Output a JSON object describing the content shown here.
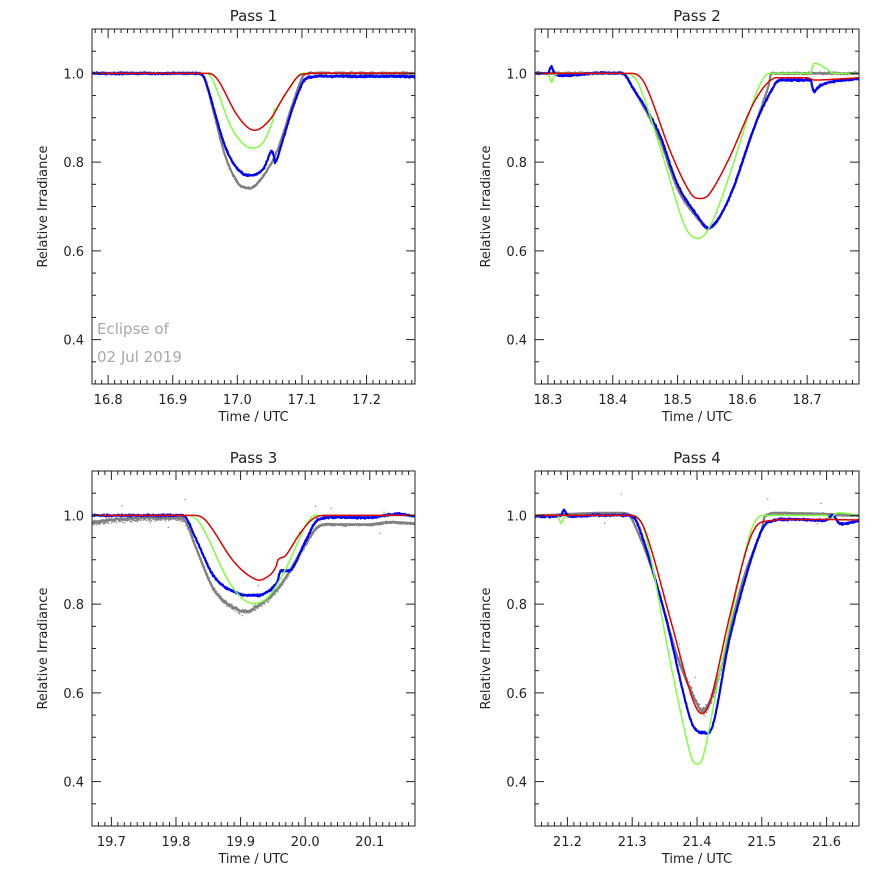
{
  "chart_data": [
    {
      "type": "line",
      "title": "Pass 1",
      "xlabel": "Time / UTC",
      "ylabel": "Relative Irradiance",
      "xlim": [
        16.775,
        17.275
      ],
      "ylim": [
        0.3,
        1.1
      ],
      "xticks": [
        16.8,
        16.9,
        17.0,
        17.1,
        17.2
      ],
      "xtick_labels": [
        "16.8",
        "16.9",
        "17.0",
        "17.1",
        "17.2"
      ],
      "yticks": [
        0.4,
        0.6,
        0.8,
        1.0
      ],
      "ytick_labels": [
        "0.4",
        "0.6",
        "0.8",
        "1.0"
      ],
      "grid": false,
      "annotation": [
        "Eclipse of",
        "02 Jul 2019"
      ],
      "series": [
        {
          "name": "gray",
          "color": "#808080",
          "style": "noisy",
          "x": [
            16.775,
            16.94,
            16.95,
            16.98,
            17.0,
            17.015,
            17.03,
            17.06,
            17.09,
            17.105,
            17.275
          ],
          "y": [
            1.0,
            1.0,
            0.985,
            0.82,
            0.755,
            0.742,
            0.75,
            0.82,
            0.95,
            0.998,
            1.0
          ]
        },
        {
          "name": "blue",
          "color": "#0000ff",
          "style": "noisy",
          "x": [
            16.775,
            16.94,
            16.95,
            16.98,
            17.0,
            17.02,
            17.04,
            17.053,
            17.057,
            17.058,
            17.062,
            17.09,
            17.108,
            17.275
          ],
          "y": [
            1.0,
            1.0,
            0.985,
            0.84,
            0.785,
            0.77,
            0.785,
            0.825,
            0.81,
            0.8,
            0.81,
            0.94,
            0.99,
            0.993
          ]
        },
        {
          "name": "green",
          "color": "#80ff40",
          "style": "smooth",
          "x": [
            16.775,
            16.945,
            16.96,
            16.99,
            17.01,
            17.025,
            17.04,
            17.055,
            17.057,
            17.06,
            17.08,
            17.1,
            17.275
          ],
          "y": [
            1.0,
            1.0,
            0.99,
            0.88,
            0.84,
            0.832,
            0.845,
            0.895,
            0.92,
            0.92,
            0.965,
            1.0,
            1.0
          ]
        },
        {
          "name": "red",
          "color": "#e00000",
          "style": "smooth",
          "x": [
            16.775,
            16.955,
            16.97,
            17.0,
            17.025,
            17.05,
            17.075,
            17.1,
            17.275
          ],
          "y": [
            1.0,
            1.0,
            0.985,
            0.905,
            0.872,
            0.895,
            0.955,
            0.998,
            1.0
          ]
        }
      ]
    },
    {
      "type": "line",
      "title": "Pass 2",
      "xlabel": "Time / UTC",
      "ylabel": "Relative Irradiance",
      "xlim": [
        18.28,
        18.78
      ],
      "ylim": [
        0.3,
        1.1
      ],
      "xticks": [
        18.3,
        18.4,
        18.5,
        18.6,
        18.7
      ],
      "xtick_labels": [
        "18.3",
        "18.4",
        "18.5",
        "18.6",
        "18.7"
      ],
      "yticks": [
        0.4,
        0.6,
        0.8,
        1.0
      ],
      "ytick_labels": [
        "0.4",
        "0.6",
        "0.8",
        "1.0"
      ],
      "grid": false,
      "series": [
        {
          "name": "gray",
          "color": "#808080",
          "style": "noisy",
          "x": [
            18.28,
            18.415,
            18.43,
            18.47,
            18.5,
            18.53,
            18.55,
            18.58,
            18.62,
            18.64,
            18.645,
            18.78
          ],
          "y": [
            1.0,
            1.0,
            0.97,
            0.86,
            0.74,
            0.675,
            0.652,
            0.72,
            0.885,
            0.97,
            1.0,
            1.0
          ]
        },
        {
          "name": "blue",
          "color": "#0000ff",
          "style": "noisy",
          "x": [
            18.28,
            18.3,
            18.305,
            18.31,
            18.32,
            18.415,
            18.43,
            18.47,
            18.5,
            18.53,
            18.55,
            18.58,
            18.62,
            18.65,
            18.66,
            18.705,
            18.71,
            18.72,
            18.74,
            18.78
          ],
          "y": [
            1.0,
            1.0,
            1.015,
            1.0,
            0.995,
            1.0,
            0.97,
            0.87,
            0.75,
            0.68,
            0.652,
            0.72,
            0.885,
            0.975,
            0.985,
            0.985,
            0.96,
            0.972,
            0.982,
            0.988
          ]
        },
        {
          "name": "green",
          "color": "#80ff40",
          "style": "smooth",
          "x": [
            18.28,
            18.3,
            18.305,
            18.31,
            18.32,
            18.42,
            18.44,
            18.48,
            18.51,
            18.53,
            18.55,
            18.58,
            18.62,
            18.64,
            18.705,
            18.71,
            18.73,
            18.74,
            18.78
          ],
          "y": [
            1.0,
            1.0,
            0.98,
            0.995,
            1.0,
            1.0,
            0.975,
            0.8,
            0.66,
            0.628,
            0.655,
            0.77,
            0.95,
            1.0,
            1.0,
            1.022,
            1.01,
            1.0,
            1.0
          ]
        },
        {
          "name": "red",
          "color": "#e00000",
          "style": "smooth",
          "x": [
            18.28,
            18.43,
            18.45,
            18.49,
            18.52,
            18.535,
            18.55,
            18.58,
            18.62,
            18.65,
            18.7,
            18.71,
            18.72,
            18.78
          ],
          "y": [
            1.0,
            1.0,
            0.975,
            0.82,
            0.73,
            0.718,
            0.73,
            0.81,
            0.94,
            0.99,
            0.99,
            0.985,
            0.985,
            0.99
          ]
        }
      ]
    },
    {
      "type": "line",
      "title": "Pass 3",
      "xlabel": "Time / UTC",
      "ylabel": "Relative Irradiance",
      "xlim": [
        19.67,
        20.17
      ],
      "ylim": [
        0.3,
        1.1
      ],
      "xticks": [
        19.7,
        19.8,
        19.9,
        20.0,
        20.1
      ],
      "xtick_labels": [
        "19.7",
        "19.8",
        "19.9",
        "20.0",
        "20.1"
      ],
      "yticks": [
        0.4,
        0.6,
        0.8,
        1.0
      ],
      "ytick_labels": [
        "0.4",
        "0.6",
        "0.8",
        "1.0"
      ],
      "grid": false,
      "series": [
        {
          "name": "gray",
          "color": "#808080",
          "style": "scatter",
          "x": [
            19.67,
            19.7,
            19.75,
            19.8,
            19.815,
            19.83,
            19.86,
            19.9,
            19.92,
            19.96,
            20.0,
            20.02,
            20.05,
            20.1,
            20.13,
            20.17
          ],
          "y": [
            0.985,
            0.99,
            0.995,
            0.995,
            0.985,
            0.93,
            0.83,
            0.785,
            0.79,
            0.84,
            0.935,
            0.975,
            0.98,
            0.98,
            0.985,
            0.982
          ]
        },
        {
          "name": "blue",
          "color": "#0000ff",
          "style": "noisy",
          "x": [
            19.67,
            19.8,
            19.815,
            19.83,
            19.86,
            19.9,
            19.93,
            19.955,
            19.962,
            19.97,
            19.98,
            20.0,
            20.02,
            20.1,
            20.14,
            20.17
          ],
          "y": [
            1.0,
            1.0,
            0.995,
            0.95,
            0.86,
            0.822,
            0.82,
            0.845,
            0.875,
            0.875,
            0.88,
            0.94,
            0.99,
            0.995,
            1.003,
            0.998
          ]
        },
        {
          "name": "green",
          "color": "#80ff40",
          "style": "smooth",
          "x": [
            19.67,
            19.82,
            19.84,
            19.88,
            19.905,
            19.925,
            19.945,
            19.97,
            20.0,
            20.015,
            20.17
          ],
          "y": [
            1.0,
            1.0,
            0.975,
            0.855,
            0.81,
            0.802,
            0.82,
            0.88,
            0.975,
            1.0,
            1.0
          ]
        },
        {
          "name": "red",
          "color": "#e00000",
          "style": "smooth",
          "x": [
            19.67,
            19.82,
            19.845,
            19.89,
            19.925,
            19.945,
            19.955,
            19.958,
            19.97,
            19.99,
            20.01,
            20.03,
            20.17
          ],
          "y": [
            1.0,
            1.0,
            0.99,
            0.895,
            0.855,
            0.865,
            0.885,
            0.9,
            0.91,
            0.955,
            0.99,
            1.0,
            1.0
          ]
        }
      ]
    },
    {
      "type": "line",
      "title": "Pass 4",
      "xlabel": "Time / UTC",
      "ylabel": "Relative Irradiance",
      "xlim": [
        21.15,
        21.65
      ],
      "ylim": [
        0.3,
        1.1
      ],
      "xticks": [
        21.2,
        21.3,
        21.4,
        21.5,
        21.6
      ],
      "xtick_labels": [
        "21.2",
        "21.3",
        "21.4",
        "21.5",
        "21.6"
      ],
      "yticks": [
        0.4,
        0.6,
        0.8,
        1.0
      ],
      "ytick_labels": [
        "0.4",
        "0.6",
        "0.8",
        "1.0"
      ],
      "grid": false,
      "series": [
        {
          "name": "gray",
          "color": "#808080",
          "style": "scatter",
          "x": [
            21.15,
            21.29,
            21.3,
            21.33,
            21.37,
            21.4,
            21.41,
            21.43,
            21.47,
            21.5,
            21.505,
            21.55,
            21.65
          ],
          "y": [
            1.0,
            1.005,
            0.99,
            0.88,
            0.68,
            0.575,
            0.56,
            0.62,
            0.85,
            0.97,
            1.0,
            1.005,
            1.0
          ]
        },
        {
          "name": "blue",
          "color": "#0000ff",
          "style": "noisy",
          "x": [
            21.15,
            21.19,
            21.195,
            21.2,
            21.21,
            21.295,
            21.31,
            21.35,
            21.39,
            21.41,
            21.425,
            21.45,
            21.49,
            21.51,
            21.6,
            21.61,
            21.62,
            21.65
          ],
          "y": [
            0.998,
            1.0,
            1.012,
            1.0,
            0.998,
            1.0,
            0.975,
            0.78,
            0.54,
            0.51,
            0.53,
            0.72,
            0.93,
            0.985,
            0.99,
            1.0,
            0.982,
            0.988
          ]
        },
        {
          "name": "green",
          "color": "#80ff40",
          "style": "smooth",
          "x": [
            21.15,
            21.185,
            21.19,
            21.195,
            21.205,
            21.3,
            21.32,
            21.36,
            21.39,
            21.4,
            21.41,
            21.44,
            21.48,
            21.5,
            21.6,
            21.605,
            21.615,
            21.65
          ],
          "y": [
            1.0,
            1.0,
            0.982,
            0.995,
            1.0,
            1.0,
            0.96,
            0.66,
            0.46,
            0.44,
            0.46,
            0.68,
            0.95,
            1.0,
            1.0,
            0.99,
            1.005,
            1.0
          ]
        },
        {
          "name": "red",
          "color": "#e00000",
          "style": "smooth",
          "x": [
            21.15,
            21.3,
            21.32,
            21.36,
            21.39,
            21.405,
            21.42,
            21.45,
            21.48,
            21.5,
            21.65
          ],
          "y": [
            1.0,
            1.0,
            0.965,
            0.76,
            0.6,
            0.555,
            0.58,
            0.77,
            0.94,
            0.985,
            0.99
          ]
        }
      ]
    }
  ]
}
